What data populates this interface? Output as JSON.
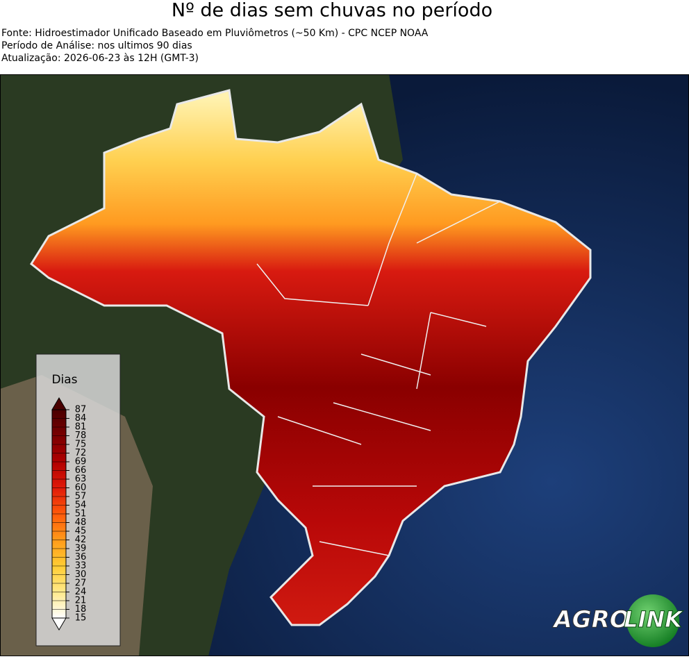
{
  "header": {
    "title": "Nº de dias sem chuvas no período",
    "lines": [
      "Fonte: Hidroestimador Unificado Baseado em Pluviômetros (~50 Km) - CPC NCEP NOAA",
      "Período de Análise: nos ultimos 90 dias",
      "Atualização: 2026-06-23 às 12H (GMT-3)"
    ]
  },
  "colorbar": {
    "title": "Dias",
    "ticks": [
      15,
      18,
      21,
      24,
      27,
      30,
      33,
      36,
      39,
      42,
      45,
      48,
      51,
      54,
      57,
      60,
      63,
      66,
      69,
      72,
      75,
      78,
      81,
      84,
      87
    ],
    "colors": [
      "#ffffff",
      "#ffe98a",
      "#ffcc33",
      "#ff9a1a",
      "#ff5a0a",
      "#e01a0a",
      "#b00000",
      "#7a0000",
      "#4a0000"
    ]
  },
  "logo": {
    "left": "AGRO",
    "right": "LINK"
  }
}
